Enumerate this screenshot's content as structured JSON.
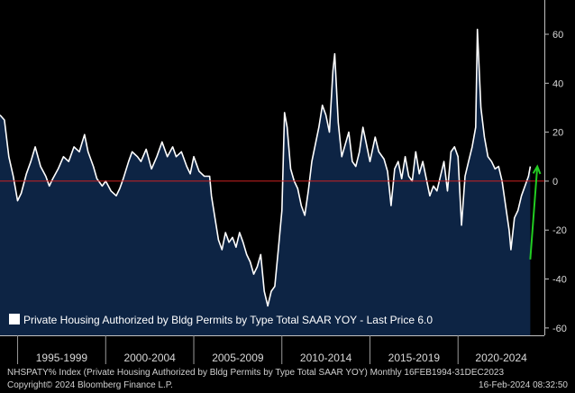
{
  "chart_data": {
    "type": "area",
    "title": "",
    "series_name": "Private Housing Authorized by Bldg Permits by Type Total SAAR YOY",
    "last_price_label": "Last Price",
    "last_price": 6.0,
    "legend_label": "Private Housing Authorized by Bldg Permits by Type Total SAAR YOY - Last Price 6.0",
    "ylim": [
      -63,
      74
    ],
    "y_ticks": [
      60,
      40,
      20,
      0,
      -20,
      -40,
      -60
    ],
    "x_start": 1994.0,
    "x_end": 2024.9,
    "x_range_labels": [
      {
        "label": "1995-1999",
        "from": 1995,
        "to": 2000
      },
      {
        "label": "2000-2004",
        "from": 2000,
        "to": 2005
      },
      {
        "label": "2005-2009",
        "from": 2005,
        "to": 2010
      },
      {
        "label": "2010-2014",
        "from": 2010,
        "to": 2015
      },
      {
        "label": "2015-2019",
        "from": 2015,
        "to": 2020
      },
      {
        "label": "2020-2024",
        "from": 2020,
        "to": 2025
      }
    ],
    "points": [
      [
        1994.0,
        27
      ],
      [
        1994.25,
        25
      ],
      [
        1994.5,
        10
      ],
      [
        1994.75,
        2
      ],
      [
        1995.0,
        -8
      ],
      [
        1995.2,
        -5
      ],
      [
        1995.5,
        3
      ],
      [
        1995.75,
        8
      ],
      [
        1996.0,
        14
      ],
      [
        1996.3,
        6
      ],
      [
        1996.6,
        2
      ],
      [
        1996.8,
        -2
      ],
      [
        1997.0,
        1
      ],
      [
        1997.3,
        5
      ],
      [
        1997.6,
        10
      ],
      [
        1997.9,
        8
      ],
      [
        1998.2,
        14
      ],
      [
        1998.5,
        12
      ],
      [
        1998.8,
        19
      ],
      [
        1999.0,
        12
      ],
      [
        1999.3,
        6
      ],
      [
        1999.5,
        1
      ],
      [
        1999.8,
        -2
      ],
      [
        2000.0,
        0
      ],
      [
        2000.3,
        -4
      ],
      [
        2000.6,
        -6
      ],
      [
        2000.8,
        -3
      ],
      [
        2001.0,
        1
      ],
      [
        2001.3,
        8
      ],
      [
        2001.5,
        12
      ],
      [
        2001.8,
        10
      ],
      [
        2002.0,
        8
      ],
      [
        2002.3,
        13
      ],
      [
        2002.6,
        5
      ],
      [
        2002.9,
        10
      ],
      [
        2003.2,
        16
      ],
      [
        2003.5,
        10
      ],
      [
        2003.8,
        14
      ],
      [
        2004.0,
        10
      ],
      [
        2004.3,
        12
      ],
      [
        2004.6,
        6
      ],
      [
        2004.8,
        3
      ],
      [
        2005.0,
        10
      ],
      [
        2005.3,
        4
      ],
      [
        2005.6,
        2
      ],
      [
        2005.9,
        2
      ],
      [
        2006.0,
        -6
      ],
      [
        2006.2,
        -15
      ],
      [
        2006.4,
        -24
      ],
      [
        2006.6,
        -28
      ],
      [
        2006.8,
        -21
      ],
      [
        2007.0,
        -25
      ],
      [
        2007.2,
        -23
      ],
      [
        2007.4,
        -27
      ],
      [
        2007.6,
        -21
      ],
      [
        2007.8,
        -25
      ],
      [
        2008.0,
        -30
      ],
      [
        2008.2,
        -33
      ],
      [
        2008.4,
        -38
      ],
      [
        2008.6,
        -35
      ],
      [
        2008.8,
        -30
      ],
      [
        2009.0,
        -45
      ],
      [
        2009.2,
        -51
      ],
      [
        2009.4,
        -45
      ],
      [
        2009.6,
        -43
      ],
      [
        2009.8,
        -28
      ],
      [
        2010.0,
        -12
      ],
      [
        2010.15,
        28
      ],
      [
        2010.3,
        22
      ],
      [
        2010.5,
        5
      ],
      [
        2010.7,
        0
      ],
      [
        2010.9,
        -3
      ],
      [
        2011.1,
        -10
      ],
      [
        2011.3,
        -14
      ],
      [
        2011.5,
        -4
      ],
      [
        2011.7,
        8
      ],
      [
        2011.9,
        15
      ],
      [
        2012.1,
        22
      ],
      [
        2012.3,
        31
      ],
      [
        2012.5,
        27
      ],
      [
        2012.7,
        20
      ],
      [
        2012.9,
        45
      ],
      [
        2013.0,
        52
      ],
      [
        2013.2,
        24
      ],
      [
        2013.4,
        10
      ],
      [
        2013.6,
        15
      ],
      [
        2013.8,
        20
      ],
      [
        2014.0,
        8
      ],
      [
        2014.2,
        6
      ],
      [
        2014.4,
        12
      ],
      [
        2014.6,
        22
      ],
      [
        2014.8,
        15
      ],
      [
        2015.0,
        8
      ],
      [
        2015.3,
        18
      ],
      [
        2015.5,
        12
      ],
      [
        2015.8,
        9
      ],
      [
        2016.0,
        4
      ],
      [
        2016.2,
        -10
      ],
      [
        2016.4,
        5
      ],
      [
        2016.6,
        8
      ],
      [
        2016.8,
        1
      ],
      [
        2017.0,
        10
      ],
      [
        2017.2,
        2
      ],
      [
        2017.4,
        0
      ],
      [
        2017.6,
        12
      ],
      [
        2017.8,
        3
      ],
      [
        2018.0,
        8
      ],
      [
        2018.2,
        1
      ],
      [
        2018.4,
        -6
      ],
      [
        2018.6,
        -2
      ],
      [
        2018.8,
        -4
      ],
      [
        2019.0,
        2
      ],
      [
        2019.2,
        8
      ],
      [
        2019.4,
        -4
      ],
      [
        2019.6,
        12
      ],
      [
        2019.8,
        14
      ],
      [
        2020.0,
        10
      ],
      [
        2020.2,
        -18
      ],
      [
        2020.4,
        2
      ],
      [
        2020.6,
        8
      ],
      [
        2020.8,
        14
      ],
      [
        2021.0,
        22
      ],
      [
        2021.1,
        62
      ],
      [
        2021.3,
        30
      ],
      [
        2021.5,
        18
      ],
      [
        2021.7,
        10
      ],
      [
        2021.9,
        8
      ],
      [
        2022.1,
        5
      ],
      [
        2022.3,
        6
      ],
      [
        2022.5,
        0
      ],
      [
        2022.7,
        -10
      ],
      [
        2022.9,
        -20
      ],
      [
        2023.0,
        -28
      ],
      [
        2023.2,
        -15
      ],
      [
        2023.4,
        -12
      ],
      [
        2023.6,
        -6
      ],
      [
        2023.8,
        -2
      ],
      [
        2024.0,
        2
      ],
      [
        2024.1,
        6
      ]
    ],
    "zero_line_color": "#cc2222",
    "line_color": "#ffffff",
    "area_color": "#0d2444",
    "arrow_color": "#22cc22",
    "arrow": {
      "from": [
        2024.1,
        -32
      ],
      "to": [
        2024.5,
        6
      ]
    }
  },
  "footer": {
    "left1": "NHSPATY% Index (Private Housing Authorized by Bldg Permits by Type Total SAAR YOY)  Monthly 16FEB1994-31DEC2023",
    "left2": "Copyright© 2024 Bloomberg Finance L.P.",
    "right2": "16-Feb-2024 08:32:50"
  }
}
